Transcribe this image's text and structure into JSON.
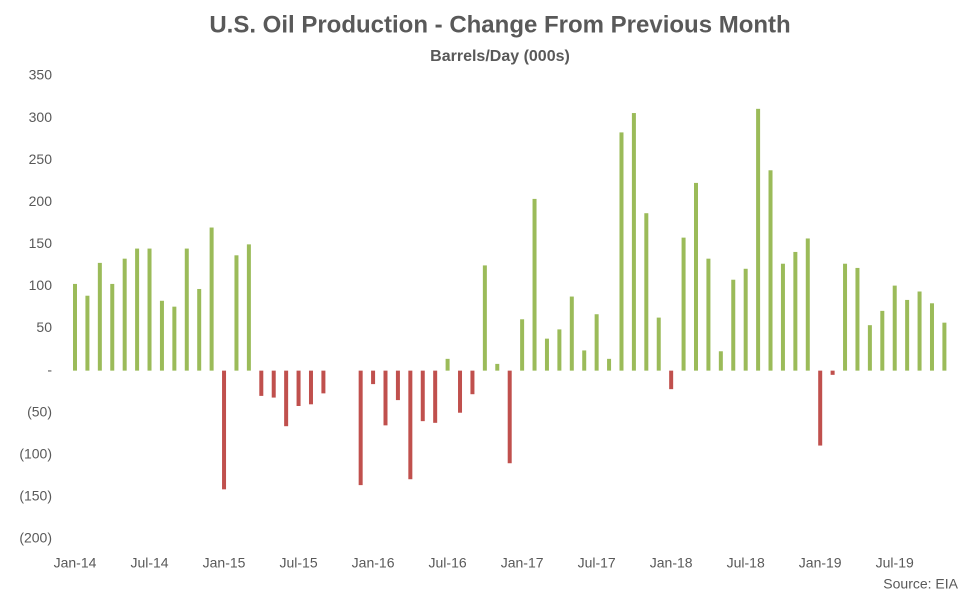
{
  "chart_data": {
    "type": "bar",
    "title": "U.S. Oil Production - Change From Previous Month",
    "subtitle": "Barrels/Day (000s)",
    "source": "Source: EIA",
    "categories": [
      "Jan-14",
      null,
      null,
      null,
      null,
      null,
      "Jul-14",
      null,
      null,
      null,
      null,
      null,
      "Jan-15",
      null,
      null,
      null,
      null,
      null,
      "Jul-15",
      null,
      null,
      null,
      null,
      null,
      "Jan-16",
      null,
      null,
      null,
      null,
      null,
      "Jul-16",
      null,
      null,
      null,
      null,
      null,
      "Jan-17",
      null,
      null,
      null,
      null,
      null,
      "Jul-17",
      null,
      null,
      null,
      null,
      null,
      "Jan-18",
      null,
      null,
      null,
      null,
      null,
      "Jul-18",
      null,
      null,
      null,
      null,
      null,
      "Jan-19",
      null,
      null,
      null,
      null,
      null,
      "Jul-19",
      null,
      null,
      null,
      null
    ],
    "values": [
      103,
      89,
      128,
      103,
      133,
      145,
      145,
      83,
      76,
      145,
      97,
      170,
      -141,
      137,
      150,
      -30,
      -32,
      -66,
      -42,
      -40,
      -27,
      0,
      0,
      -136,
      -16,
      -65,
      -35,
      -129,
      -60,
      -62,
      14,
      -50,
      -28,
      125,
      8,
      -110,
      61,
      204,
      38,
      49,
      88,
      24,
      67,
      14,
      283,
      306,
      187,
      63,
      -22,
      158,
      223,
      133,
      23,
      108,
      121,
      311,
      238,
      127,
      141,
      157,
      -89,
      -5,
      127,
      122,
      54,
      71,
      101,
      84,
      94,
      80,
      57
    ],
    "positive_color": "#9bbb59",
    "negative_color": "#c0504d",
    "ylim": [
      -200,
      350
    ],
    "yticks": [
      {
        "value": -200,
        "label": "(200)"
      },
      {
        "value": -150,
        "label": "(150)"
      },
      {
        "value": -100,
        "label": "(100)"
      },
      {
        "value": -50,
        "label": "(50)"
      },
      {
        "value": 0,
        "label": "-"
      },
      50,
      100,
      150,
      200,
      250,
      300,
      350
    ],
    "grid": false
  }
}
